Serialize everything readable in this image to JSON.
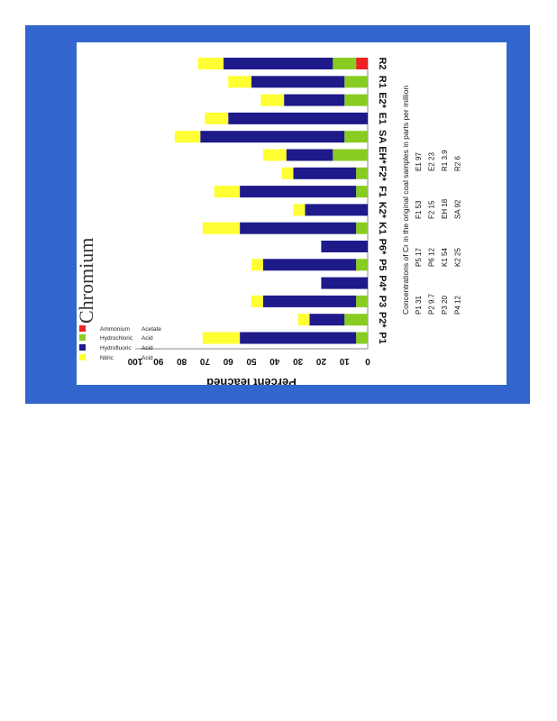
{
  "chart_data": {
    "type": "bar",
    "stacked": true,
    "orientation": "rotated-90",
    "title": "Chromium",
    "ylabel": "Percent leached",
    "xlabel": "",
    "ylim": [
      0,
      100
    ],
    "yticks": [
      "0",
      "10",
      "20",
      "30",
      "40",
      "50",
      "60",
      "70",
      "80",
      "90",
      "100"
    ],
    "categories": [
      "P1",
      "P2*",
      "P3",
      "P4*",
      "P5",
      "P6*",
      "K1",
      "K2*",
      "F1",
      "F2*",
      "EH*",
      "SA",
      "E1",
      "E2*",
      "R1",
      "R2"
    ],
    "series": [
      {
        "name": "Ammonium Acetate",
        "color": "#ee2222",
        "values": [
          0,
          0,
          0,
          0,
          0,
          0,
          0,
          0,
          0,
          0,
          0,
          0,
          0,
          0,
          0,
          5
        ]
      },
      {
        "name": "Hydrochloric Acid",
        "color": "#88cc22",
        "values": [
          5,
          10,
          5,
          0,
          5,
          0,
          5,
          0,
          5,
          5,
          15,
          10,
          0,
          10,
          10,
          10
        ]
      },
      {
        "name": "Hydrofluoric Acid",
        "color": "#1e1a8a",
        "values": [
          50,
          15,
          40,
          20,
          40,
          20,
          50,
          27,
          50,
          27,
          20,
          62,
          60,
          26,
          40,
          47
        ]
      },
      {
        "name": "Nitric Acid",
        "color": "#ffff33",
        "values": [
          16,
          5,
          5,
          0,
          5,
          0,
          16,
          5,
          11,
          5,
          10,
          11,
          10,
          10,
          10,
          11
        ]
      }
    ],
    "legend_position": "inside-bottom-left",
    "grid": false
  },
  "note_block": {
    "heading": "Concentrations of Cr in the original coal samples in parts per million",
    "rows": [
      [
        "P1 31",
        "P5 17",
        "F1 53",
        "E1 97"
      ],
      [
        "P2 9.7",
        "P6 12",
        "F2 15",
        "E2 23"
      ],
      [
        "P3 20",
        "K1 54",
        "EH 18",
        "R1 3.9"
      ],
      [
        "P4 12",
        "K2 25",
        "SA 92",
        "R2 6"
      ]
    ]
  },
  "legend_labels": [
    [
      "Ammonium",
      "Acetate"
    ],
    [
      "Hydrochloric",
      "Acid"
    ],
    [
      "Hydrofluoric",
      "Acid"
    ],
    [
      "Nitric",
      "Acid"
    ]
  ]
}
